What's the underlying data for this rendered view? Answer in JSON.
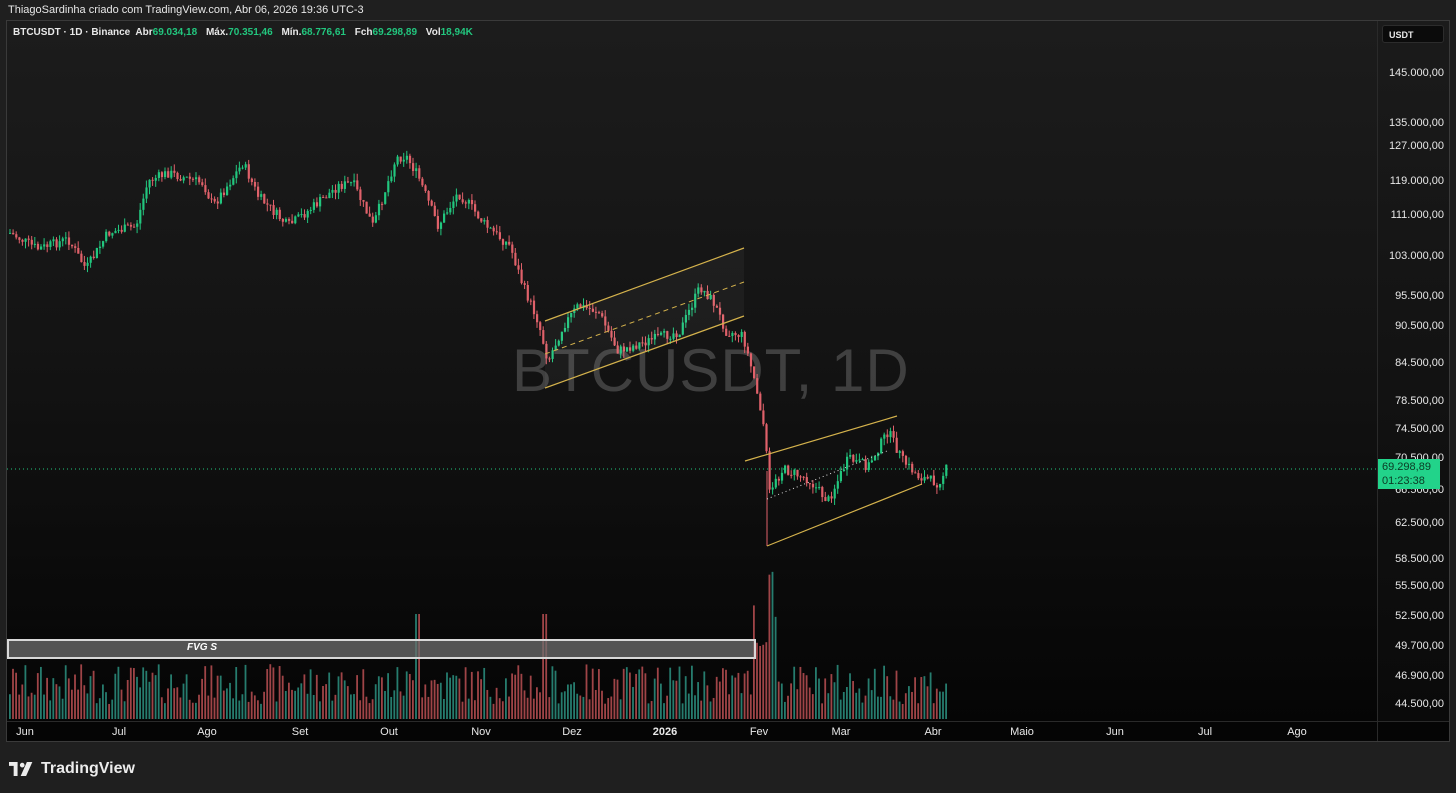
{
  "header": {
    "credit": "ThiagoSardinha criado com TradingView.com, Abr 06, 2026 19:36 UTC-3"
  },
  "legend": {
    "title": "BTCUSDT · 1D · Binance",
    "open_label": "Abr",
    "open": "69.034,18",
    "high_label": "Máx.",
    "high": "70.351,46",
    "low_label": "Mín.",
    "low": "68.776,61",
    "close_label": "Fch",
    "close": "69.298,89",
    "volume_label": "Vol",
    "volume": "18,94K"
  },
  "watermark": "BTCUSDT, 1D",
  "price_axis": {
    "currency": "USDT",
    "labels": [
      "145.000,00",
      "135.000,00",
      "127.000,00",
      "119.000,00",
      "111.000,00",
      "103.000,00",
      "95.500,00",
      "90.500,00",
      "84.500,00",
      "78.500,00",
      "74.500,00",
      "70.500,00",
      "66.500,00",
      "62.500,00",
      "58.500,00",
      "55.500,00",
      "52.500,00",
      "49.700,00",
      "46.900,00",
      "44.500,00"
    ],
    "last_price": "69.298,89",
    "countdown": "01:23:38"
  },
  "time_axis": {
    "labels": [
      "Jun",
      "Jul",
      "Ago",
      "Set",
      "Out",
      "Nov",
      "Dez",
      "2026",
      "Fev",
      "Mar",
      "Abr",
      "Maio",
      "Jun",
      "Jul",
      "Ago"
    ]
  },
  "annotations": {
    "fvg_label": "FVG S",
    "channel_1": "Ascending channel Nov–Jan (upper, mid dashed, lower)",
    "channel_2": "Ascending channel Feb–Abr (upper, lower, mid dotted)"
  },
  "brand": {
    "name": "TradingView"
  },
  "colors": {
    "up": "#22c67e",
    "down": "#e0616a",
    "channel": "#d4b24c",
    "last_price_bg": "#22d38a"
  },
  "chart_data": {
    "type": "candlestick",
    "title": "BTCUSDT · 1D · Binance",
    "xlabel": "",
    "ylabel": "USDT",
    "x_ticks": [
      "Jun",
      "Jul",
      "Ago",
      "Set",
      "Out",
      "Nov",
      "Dez",
      "2026",
      "Fev",
      "Mar",
      "Abr",
      "Maio",
      "Jun",
      "Jul",
      "Ago"
    ],
    "y_ticks": [
      145000,
      135000,
      127000,
      119000,
      111000,
      103000,
      95500,
      90500,
      84500,
      78500,
      74500,
      70500,
      66500,
      62500,
      58500,
      55500,
      52500,
      49700,
      46900,
      44500
    ],
    "ylim": [
      43500,
      150000
    ],
    "scale": "log",
    "approx_monthly_close": {
      "Jun 2025": 107000,
      "Jul 2025": 115800,
      "Ago 2025": 108200,
      "Set 2025": 114000,
      "Out 2025": 109500,
      "Nov 2025": 90500,
      "Dez 2025": 87500,
      "Jan 2026": 78500,
      "Fev 2026": 67000,
      "Mar 2026": 68000,
      "Abr 2026 (06)": 69298.89
    },
    "key_points": {
      "all_time_high_approx": 126000,
      "ath_date_approx": "Out 2025",
      "feb_low_approx": 60000,
      "last_close": 69298.89,
      "last_open": 69034.18,
      "last_high": 70351.46,
      "last_low": 68776.61,
      "last_volume": "18,94K"
    },
    "series": [
      {
        "name": "Volume",
        "type": "bar",
        "note": "daily volume histogram, spike early Fev 2026"
      }
    ],
    "grid": false,
    "legend_position": "top-left"
  }
}
